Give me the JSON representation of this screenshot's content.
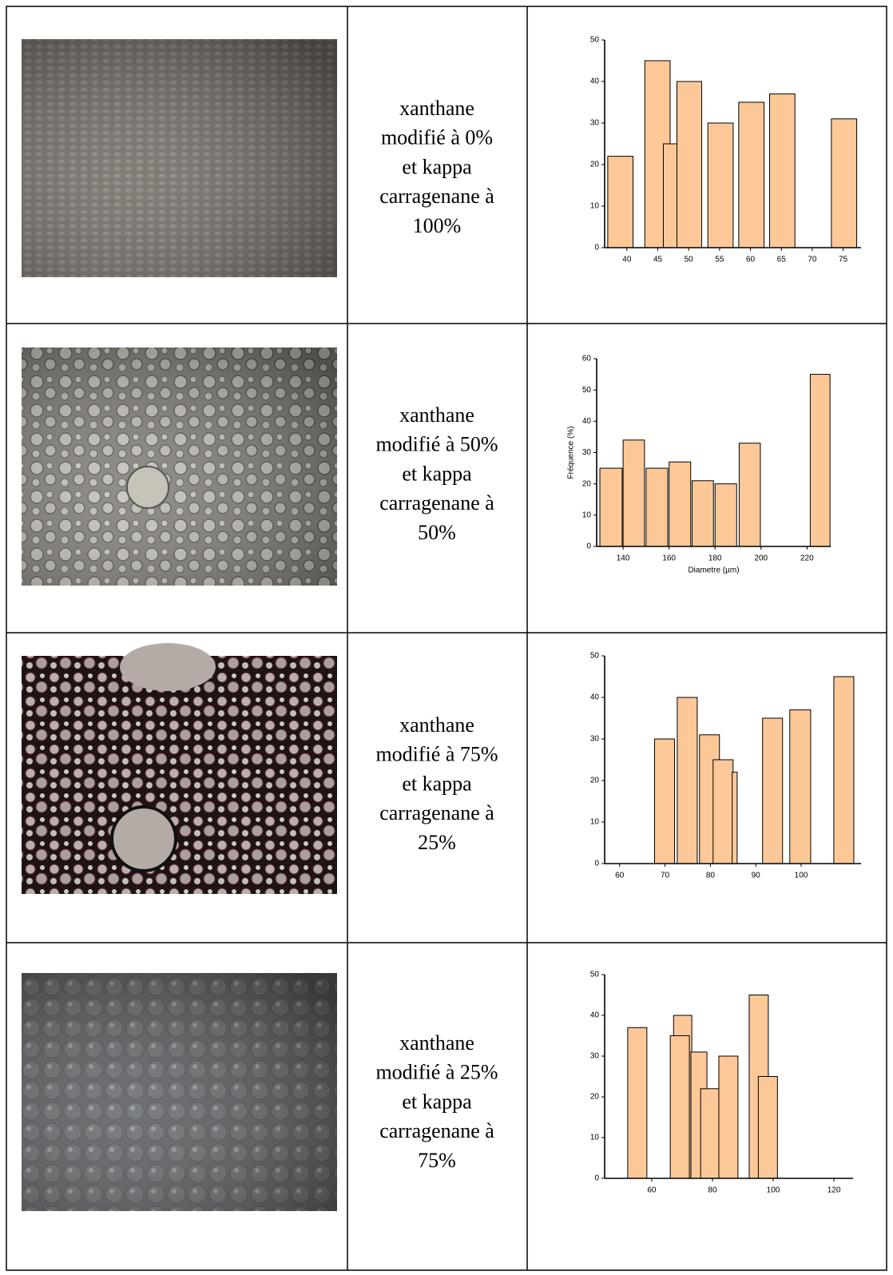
{
  "table": {
    "rows": [
      {
        "label": [
          "xanthane",
          "modifié à 0%",
          "et kappa",
          "carragenane à",
          "100%"
        ]
      },
      {
        "label": [
          "xanthane",
          "modifié à 50%",
          "et kappa",
          "carragenane à",
          "50%"
        ]
      },
      {
        "label": [
          "xanthane",
          "modifié à 75%",
          "et kappa",
          "carragenane à",
          "25%"
        ]
      },
      {
        "label": [
          "xanthane",
          "modifié à 25%",
          "et kappa",
          "carragenane à",
          "75%"
        ]
      }
    ]
  },
  "chart_data": [
    {
      "type": "bar",
      "color": "#fdc898",
      "x0": [
        36.9,
        42.9,
        45.9,
        48.1,
        53.1,
        58.1,
        63.1,
        73.1
      ],
      "x1": [
        41.0,
        47.0,
        48.1,
        52.1,
        57.2,
        62.2,
        67.2,
        77.2
      ],
      "values": [
        22,
        45,
        25,
        40,
        30,
        35,
        37,
        31
      ],
      "xlim": [
        36.4,
        77.9
      ],
      "ylim": [
        0,
        50
      ],
      "xticks": [
        40,
        45,
        50,
        55,
        60,
        65,
        70,
        75
      ],
      "yticks": [
        0,
        10,
        20,
        30,
        40,
        50
      ]
    },
    {
      "type": "bar",
      "color": "#fdc898",
      "x_label": "Diametre (µm)",
      "y_label": "Fréquence (%)",
      "x0": [
        129.9,
        140.0,
        150.0,
        160.0,
        170.0,
        180.0,
        190.5,
        221.4
      ],
      "x1": [
        139.6,
        149.3,
        159.4,
        169.4,
        179.3,
        189.4,
        199.7,
        230.0
      ],
      "values": [
        25,
        34,
        25,
        27,
        21,
        20,
        33,
        55
      ],
      "xlim": [
        128.5,
        230.3
      ],
      "ylim": [
        0,
        60
      ],
      "xticks": [
        140,
        160,
        180,
        200,
        220
      ],
      "yticks": [
        0,
        10,
        20,
        30,
        40,
        50,
        60
      ]
    },
    {
      "type": "bar",
      "color": "#fdc898",
      "x0": [
        67.7,
        72.7,
        77.6,
        80.6,
        84.8,
        91.5,
        97.5,
        107.2
      ],
      "x1": [
        72.1,
        77.1,
        82.0,
        85.0,
        85.9,
        95.9,
        102.1,
        111.6
      ],
      "values": [
        30,
        40,
        31,
        25,
        22,
        35,
        37,
        45
      ],
      "xlim": [
        56.7,
        113.2
      ],
      "ylim": [
        0,
        50
      ],
      "xticks": [
        60,
        70,
        80,
        90,
        100
      ],
      "yticks": [
        0,
        10,
        20,
        30,
        40,
        50
      ]
    },
    {
      "type": "bar",
      "color": "#fdc898",
      "x0": [
        52.1,
        67.2,
        66.1,
        72.9,
        76.1,
        82.1,
        92.1,
        95.1
      ],
      "x1": [
        58.4,
        73.2,
        72.4,
        78.2,
        82.4,
        88.4,
        98.4,
        101.4
      ],
      "values": [
        37,
        40,
        35,
        31,
        22,
        30,
        45,
        25
      ],
      "xlim": [
        44.5,
        126.3
      ],
      "ylim": [
        0,
        50
      ],
      "xticks": [
        60,
        80,
        100,
        120
      ],
      "yticks": [
        0,
        10,
        20,
        30,
        40,
        50
      ]
    }
  ]
}
